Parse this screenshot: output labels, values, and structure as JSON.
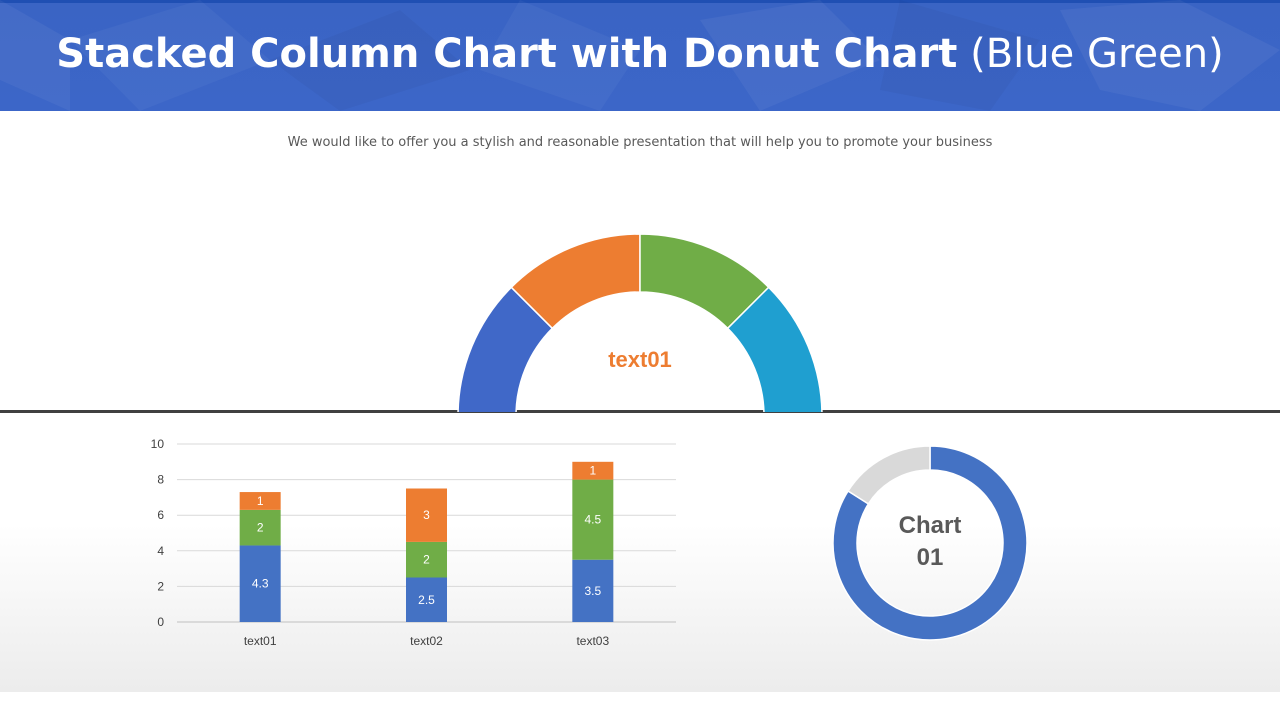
{
  "header": {
    "title_bold": "Stacked Column Chart with Donut Chart",
    "title_normal": " (Blue Green)",
    "subtitle": "We would like to offer you a stylish and reasonable presentation that will help you to promote your business"
  },
  "chart_data": [
    {
      "type": "pie",
      "variant": "half-donut",
      "center_label": "text01",
      "center_label_color": "#ed7d31",
      "slices": [
        {
          "value": 1,
          "color": "#4068c8"
        },
        {
          "value": 1,
          "color": "#ed7d31"
        },
        {
          "value": 1,
          "color": "#70ad47"
        },
        {
          "value": 1,
          "color": "#1f9fd0"
        }
      ]
    },
    {
      "type": "bar",
      "stacked": true,
      "categories": [
        "text01",
        "text02",
        "text03"
      ],
      "series": [
        {
          "values": [
            4.3,
            2.5,
            3.5
          ],
          "color": "#4472c4"
        },
        {
          "values": [
            2,
            2,
            4.5
          ],
          "color": "#70ad47"
        },
        {
          "values": [
            1,
            3,
            1
          ],
          "color": "#ed7d31"
        }
      ],
      "ylim": [
        0,
        10
      ],
      "yticks": [
        "0",
        "2",
        "4",
        "6",
        "8",
        "10"
      ],
      "grid": true
    },
    {
      "type": "pie",
      "variant": "donut",
      "center_label": "Chart 01",
      "center_label_lines": [
        "Chart",
        "01"
      ],
      "slices": [
        {
          "value": 84,
          "color": "#4472c4"
        },
        {
          "value": 16,
          "color": "#d9d9d9"
        }
      ]
    }
  ]
}
